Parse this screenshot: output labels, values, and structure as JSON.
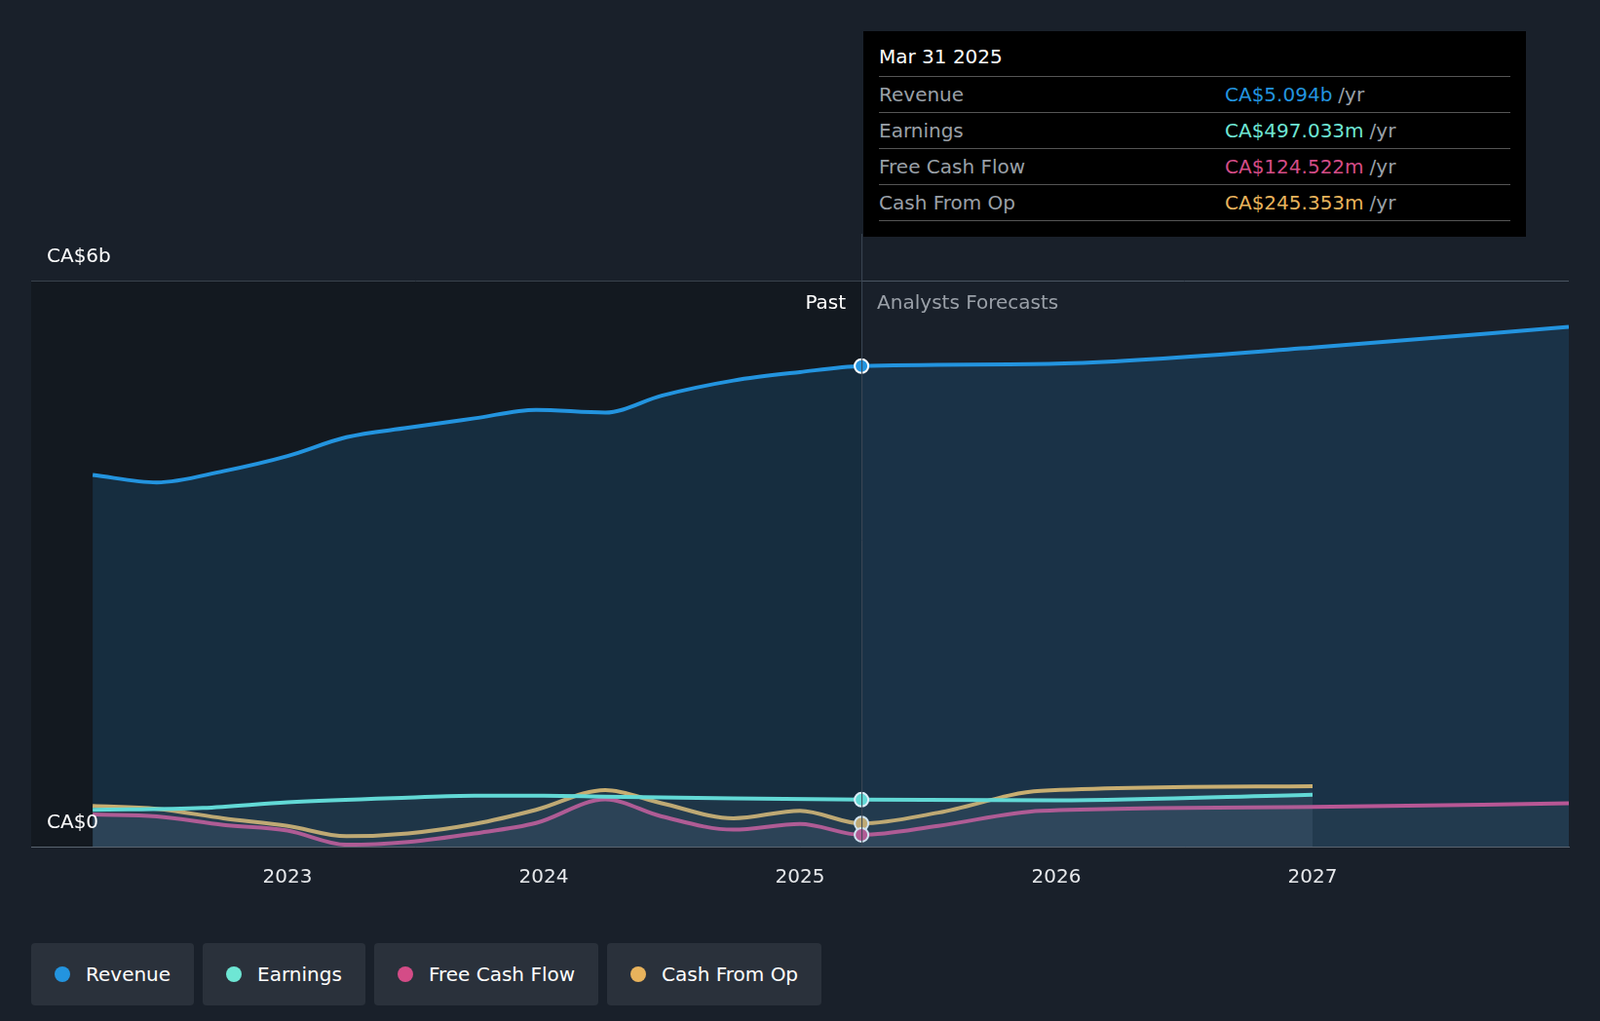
{
  "chart_data": {
    "type": "line",
    "xlim": [
      2022,
      2028
    ],
    "xticks": [
      2023,
      2024,
      2025,
      2026,
      2027
    ],
    "ylim": [
      0,
      6
    ],
    "yticks": [
      {
        "value": 0,
        "label": "CA$0"
      },
      {
        "value": 6,
        "label": "CA$6b"
      }
    ],
    "grid": true,
    "annotations": {
      "past": "Past",
      "forecast": "Analysts Forecasts"
    },
    "tooltip": {
      "date": "Mar 31 2025",
      "x": 2025.24,
      "rows": [
        {
          "label": "Revenue",
          "value": 5.094,
          "value_label": "CA$5.094b",
          "unit": "/yr"
        },
        {
          "label": "Earnings",
          "value": 0.497033,
          "value_label": "CA$497.033m",
          "unit": "/yr"
        },
        {
          "label": "Free Cash Flow",
          "value": 0.124522,
          "value_label": "CA$124.522m",
          "unit": "/yr"
        },
        {
          "label": "Cash From Op",
          "value": 0.245353,
          "value_label": "CA$245.353m",
          "unit": "/yr"
        }
      ]
    },
    "series": [
      {
        "name": "Revenue",
        "color": "#2394df",
        "x": [
          2022.24,
          2022.49,
          2022.75,
          2023.0,
          2023.23,
          2023.47,
          2023.73,
          2023.97,
          2024.24,
          2024.46,
          2024.74,
          2025.0,
          2025.24,
          2026.0,
          2027.0,
          2028.0
        ],
        "values": [
          3.94,
          3.86,
          3.98,
          4.14,
          4.34,
          4.44,
          4.54,
          4.63,
          4.6,
          4.78,
          4.94,
          5.03,
          5.094,
          5.12,
          5.29,
          5.51
        ]
      },
      {
        "name": "Earnings",
        "color": "#6ee6d4",
        "x": [
          2022.24,
          2022.67,
          2023.0,
          2023.47,
          2023.73,
          2024.0,
          2024.24,
          2024.74,
          2025.24,
          2026.0,
          2027.0
        ],
        "values": [
          0.39,
          0.41,
          0.47,
          0.52,
          0.54,
          0.54,
          0.53,
          0.51,
          0.497033,
          0.49,
          0.55
        ]
      },
      {
        "name": "Free Cash Flow",
        "color": "#d44c87",
        "x": [
          2022.24,
          2022.49,
          2022.75,
          2023.0,
          2023.23,
          2023.47,
          2023.73,
          2023.97,
          2024.24,
          2024.46,
          2024.74,
          2025.0,
          2025.24,
          2025.54,
          2025.94,
          2027.0,
          2028.0
        ],
        "values": [
          0.34,
          0.32,
          0.23,
          0.17,
          0.02,
          0.05,
          0.14,
          0.25,
          0.5,
          0.32,
          0.18,
          0.24,
          0.124522,
          0.22,
          0.38,
          0.42,
          0.46
        ]
      },
      {
        "name": "Cash From Op",
        "color": "#e8b35c",
        "x": [
          2022.24,
          2022.49,
          2022.75,
          2023.0,
          2023.23,
          2023.47,
          2023.73,
          2023.97,
          2024.24,
          2024.46,
          2024.74,
          2025.0,
          2025.24,
          2025.54,
          2025.94,
          2027.0
        ],
        "values": [
          0.43,
          0.4,
          0.3,
          0.22,
          0.11,
          0.14,
          0.24,
          0.39,
          0.6,
          0.46,
          0.3,
          0.38,
          0.245353,
          0.36,
          0.59,
          0.64
        ]
      }
    ]
  }
}
